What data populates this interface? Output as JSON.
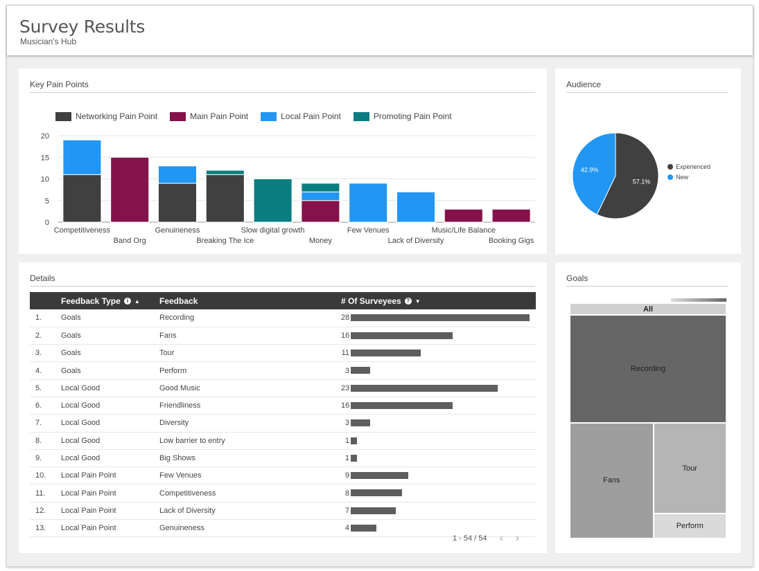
{
  "header": {
    "title": "Survey Results",
    "subtitle": "Musician's Hub"
  },
  "colors": {
    "networking": "#404040",
    "main": "#85124a",
    "local": "#2196f3",
    "promoting": "#0b7d80"
  },
  "pain_card": {
    "title": "Key Pain Points"
  },
  "audience_card": {
    "title": "Audience"
  },
  "details_card": {
    "title": "Details"
  },
  "goals_card": {
    "title": "Goals"
  },
  "chart_data": [
    {
      "type": "bar",
      "stacked": true,
      "title": "Key Pain Points",
      "categories": [
        "Competitiveness",
        "Band Org",
        "Genuineness",
        "Breaking The Ice",
        "Slow digital growth",
        "Money",
        "Few Venues",
        "Lack of Diversity",
        "Music/Life Balance",
        "Booking Gigs"
      ],
      "series": [
        {
          "name": "Networking Pain Point",
          "values": [
            11,
            0,
            9,
            11,
            0,
            0,
            0,
            0,
            0,
            0
          ]
        },
        {
          "name": "Main Pain Point",
          "values": [
            0,
            15,
            0,
            0,
            0,
            5,
            0,
            0,
            3,
            3
          ]
        },
        {
          "name": "Local Pain Point",
          "values": [
            8,
            0,
            4,
            0,
            0,
            2,
            9,
            7,
            0,
            0
          ]
        },
        {
          "name": "Promoting Pain Point",
          "values": [
            0,
            0,
            0,
            1,
            10,
            2,
            0,
            0,
            0,
            0
          ]
        }
      ],
      "yticks": [
        "0",
        "5",
        "10",
        "15",
        "20"
      ],
      "ylim": [
        0,
        20
      ],
      "legend": "top"
    },
    {
      "type": "pie",
      "title": "Audience",
      "slices": [
        {
          "name": "Experienced",
          "value": 57.1,
          "label": "57.1%"
        },
        {
          "name": "New",
          "value": 42.9,
          "label": "42.9%"
        }
      ],
      "legend": "right"
    }
  ],
  "table": {
    "headers": {
      "type": "Feedback Type",
      "feedback": "Feedback",
      "count": "# Of Surveyees"
    },
    "max": 28,
    "rows": [
      {
        "idx": "1.",
        "type": "Goals",
        "feedback": "Recording",
        "count": 28
      },
      {
        "idx": "2.",
        "type": "Goals",
        "feedback": "Fans",
        "count": 16
      },
      {
        "idx": "3.",
        "type": "Goals",
        "feedback": "Tour",
        "count": 11
      },
      {
        "idx": "4.",
        "type": "Goals",
        "feedback": "Perform",
        "count": 3
      },
      {
        "idx": "5.",
        "type": "Local Good",
        "feedback": "Good Music",
        "count": 23
      },
      {
        "idx": "6.",
        "type": "Local Good",
        "feedback": "Friendliness",
        "count": 16
      },
      {
        "idx": "7.",
        "type": "Local Good",
        "feedback": "Diversity",
        "count": 3
      },
      {
        "idx": "8.",
        "type": "Local Good",
        "feedback": "Low barrier to entry",
        "count": 1
      },
      {
        "idx": "9.",
        "type": "Local Good",
        "feedback": "Big Shows",
        "count": 1
      },
      {
        "idx": "10.",
        "type": "Local Pain Point",
        "feedback": "Few Venues",
        "count": 9
      },
      {
        "idx": "11.",
        "type": "Local Pain Point",
        "feedback": "Competitiveness",
        "count": 8
      },
      {
        "idx": "12.",
        "type": "Local Pain Point",
        "feedback": "Lack of Diversity",
        "count": 7
      },
      {
        "idx": "13.",
        "type": "Local Pain Point",
        "feedback": "Genuineness",
        "count": 4
      }
    ],
    "pagination": "1 - 54 / 54"
  },
  "treemap": {
    "root": "All",
    "items": [
      {
        "name": "Recording",
        "value": 28,
        "color": "#666666"
      },
      {
        "name": "Fans",
        "value": 16,
        "color": "#9e9e9e"
      },
      {
        "name": "Tour",
        "value": 11,
        "color": "#b5b5b5"
      },
      {
        "name": "Perform",
        "value": 3,
        "color": "#dadada"
      }
    ]
  }
}
